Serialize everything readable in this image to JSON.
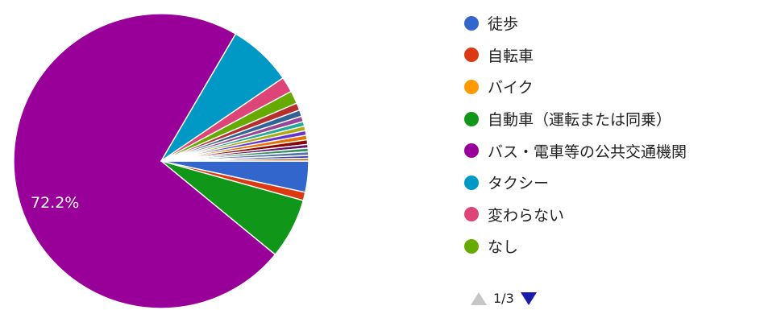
{
  "chart_data": {
    "type": "pie",
    "series": [
      {
        "name": "徒歩",
        "value": 3.4,
        "color": "#3366cc"
      },
      {
        "name": "自転車",
        "value": 0.9,
        "color": "#dc3912"
      },
      {
        "name": "バイク",
        "value": 0.0,
        "color": "#ff9900"
      },
      {
        "name": "自動車（運転または同乗）",
        "value": 6.6,
        "color": "#109618"
      },
      {
        "name": "バス・電車等の公共交通機関",
        "value": 72.2,
        "color": "#990099"
      },
      {
        "name": "タクシー",
        "value": 7.0,
        "color": "#0099c6"
      },
      {
        "name": "変わらない",
        "value": 1.7,
        "color": "#dd4477"
      },
      {
        "name": "なし",
        "value": 1.4,
        "color": "#66aa00"
      },
      {
        "value": 0.8,
        "color": "#b82e2e"
      },
      {
        "value": 0.7,
        "color": "#316395"
      },
      {
        "value": 0.6,
        "color": "#994499"
      },
      {
        "value": 0.5,
        "color": "#22aa99"
      },
      {
        "value": 0.5,
        "color": "#aaaa11"
      },
      {
        "value": 0.5,
        "color": "#6633cc"
      },
      {
        "value": 0.5,
        "color": "#e67300"
      },
      {
        "value": 0.5,
        "color": "#8b0707"
      },
      {
        "value": 0.4,
        "color": "#651067"
      },
      {
        "value": 0.4,
        "color": "#329262"
      },
      {
        "value": 0.4,
        "color": "#5574a6"
      },
      {
        "value": 0.3,
        "color": "#3b3eac"
      },
      {
        "value": 0.3,
        "color": "#b77322"
      }
    ],
    "data_labels": [
      "72.2%"
    ],
    "label_color": "#ffffff",
    "legend_position": "right"
  },
  "legend": {
    "pager_text": "1/3"
  }
}
